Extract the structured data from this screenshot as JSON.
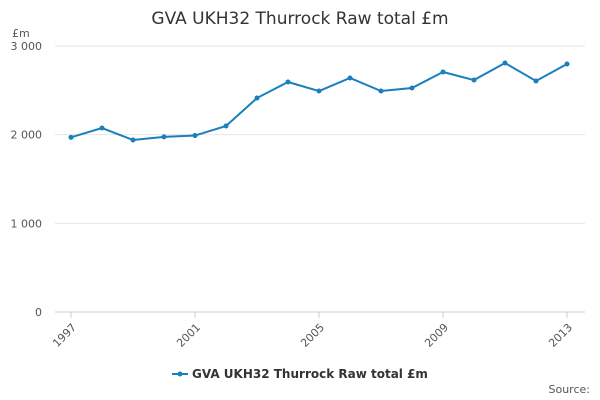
{
  "chart_data": {
    "type": "line",
    "title": "GVA UKH32 Thurrock Raw total £m",
    "ylabel": "£m",
    "source": "Source:",
    "x": [
      1997,
      1998,
      1999,
      2000,
      2001,
      2002,
      2003,
      2004,
      2005,
      2006,
      2007,
      2008,
      2009,
      2010,
      2011,
      2012,
      2013
    ],
    "series": [
      {
        "name": "GVA UKH32 Thurrock Raw total £m",
        "color": "#1a7fbe",
        "values": [
          1970,
          2075,
          1940,
          1975,
          1990,
          2098,
          2413,
          2594,
          2492,
          2639,
          2492,
          2526,
          2707,
          2616,
          2808,
          2605,
          2797
        ]
      }
    ],
    "xlim": [
      1997,
      2013
    ],
    "xticks": [
      1997,
      2001,
      2005,
      2009,
      2013
    ],
    "ylim": [
      0,
      3000
    ],
    "yticks": [
      0,
      {
        "value": 1000,
        "label": "1 000"
      },
      {
        "value": 2000,
        "label": "2 000"
      },
      {
        "value": 3000,
        "label": "3 000"
      }
    ],
    "grid": true
  }
}
